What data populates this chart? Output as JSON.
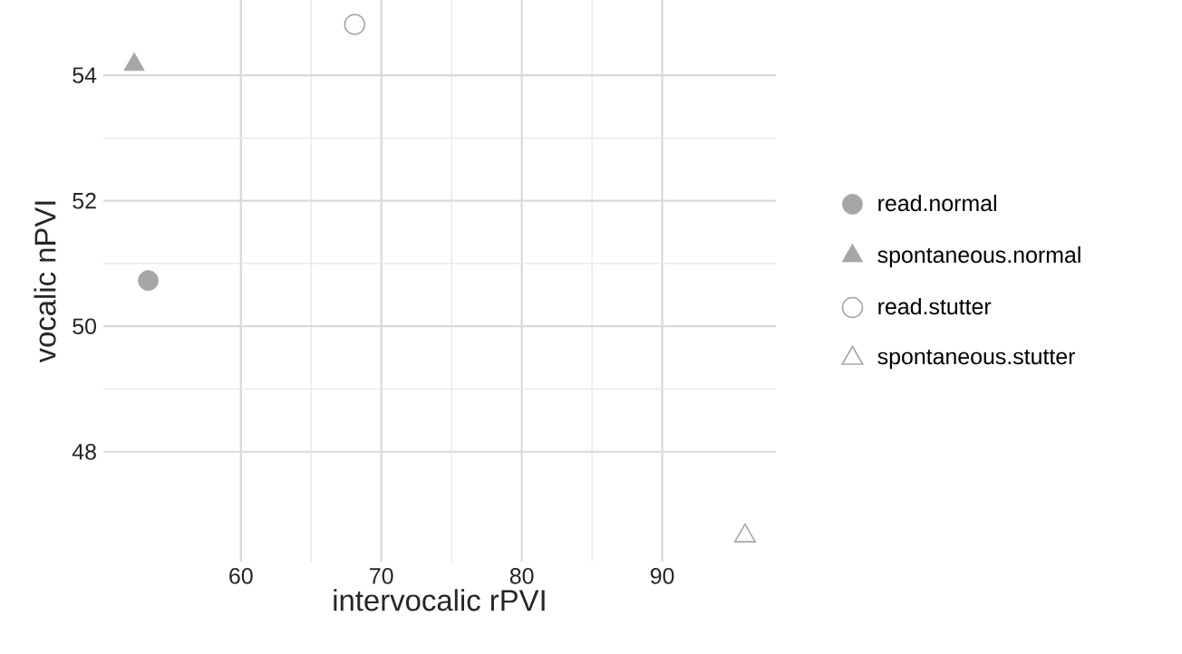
{
  "chart_data": {
    "type": "scatter",
    "xlabel": "intervocalic rPVI",
    "ylabel": "vocalic nPVI",
    "xlim": [
      50.2,
      98.1
    ],
    "ylim": [
      46.25,
      55.2
    ],
    "xticks": [
      60,
      70,
      80,
      90
    ],
    "yticks": [
      48,
      50,
      52,
      54
    ],
    "grid": true,
    "legend": "right",
    "series": [
      {
        "name": "read.normal",
        "color": "#a6a6a6",
        "marker": "circle",
        "x": [
          53.4
        ],
        "values": [
          50.73
        ]
      },
      {
        "name": "spontaneous.normal",
        "color": "#a6a6a6",
        "marker": "triangle",
        "x": [
          52.4
        ],
        "values": [
          54.17
        ]
      },
      {
        "name": "read.stutter",
        "color": "#a6a6a6",
        "marker": "circle",
        "x": [
          68.1
        ],
        "values": [
          54.81
        ]
      },
      {
        "name": "spontaneous.stutter",
        "color": "#a6a6a6",
        "marker": "triangle",
        "x": [
          95.9
        ],
        "values": [
          46.66
        ]
      }
    ]
  }
}
